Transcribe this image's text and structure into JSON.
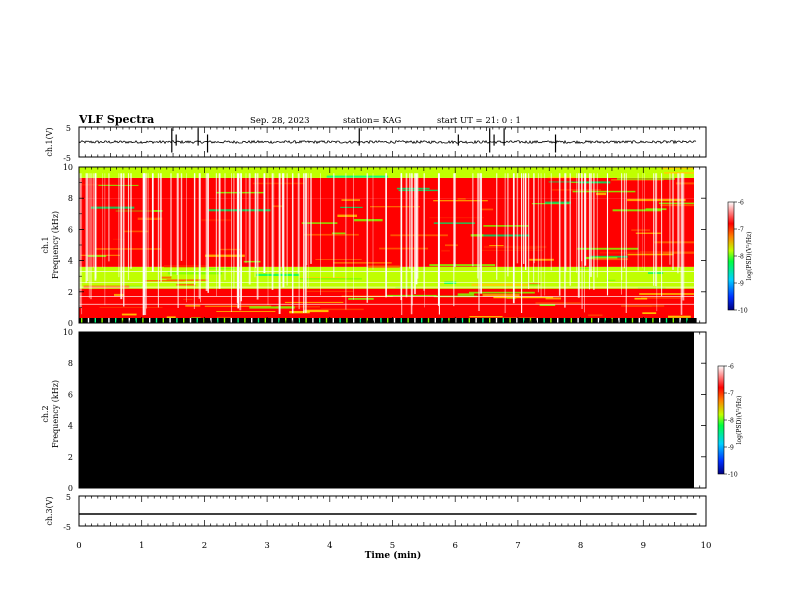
{
  "header": {
    "title": "VLF Spectra",
    "date": "Sep. 28, 2023",
    "station": "station= KAG",
    "start": "start  UT =   21: 0  : 1"
  },
  "chart_data": [
    {
      "type": "line",
      "panel": "ch1-waveform",
      "ylabel": "ch.1(V)",
      "ylim": [
        -5,
        5
      ],
      "yticks": [
        "5",
        "-5"
      ],
      "xlim": [
        0,
        10
      ],
      "baseline": 0,
      "spikes_x_min": [
        1.48,
        1.55,
        1.9,
        2.05,
        4.47,
        6.05,
        6.55,
        6.62,
        6.78,
        7.6
      ]
    },
    {
      "type": "heatmap",
      "panel": "ch1-spectrogram",
      "ylabel": "ch.1\nFrequency (kHz)",
      "ylim": [
        0,
        10
      ],
      "yticks": [
        "0",
        "2",
        "4",
        "6",
        "8",
        "10"
      ],
      "xlim": [
        0,
        9.85
      ],
      "colorbar": {
        "label": "log(PSD)(V²/Hz)",
        "ticks": [
          "-6",
          "-7",
          "-8",
          "-9",
          "-10"
        ],
        "range": [
          -10,
          -6
        ]
      },
      "bands": [
        {
          "from_khz": 0.0,
          "to_khz": 0.3,
          "level": -8.0
        },
        {
          "from_khz": 0.3,
          "to_khz": 2.2,
          "level": -6.8
        },
        {
          "from_khz": 2.2,
          "to_khz": 3.6,
          "level": -8.0
        },
        {
          "from_khz": 3.6,
          "to_khz": 8.0,
          "level": -6.4
        },
        {
          "from_khz": 8.0,
          "to_khz": 9.3,
          "level": -6.7
        },
        {
          "from_khz": 9.3,
          "to_khz": 10.0,
          "level": -7.8
        }
      ]
    },
    {
      "type": "heatmap",
      "panel": "ch2-spectrogram",
      "ylabel": "ch.2\nFrequency (kHz)",
      "ylim": [
        0,
        10
      ],
      "yticks": [
        "0",
        "2",
        "4",
        "6",
        "8",
        "10"
      ],
      "xlim": [
        0,
        9.85
      ],
      "fill": "no data (black)",
      "colorbar": {
        "label": "log(PSD)(V²/Hz)",
        "ticks": [
          "-6",
          "-7",
          "-8",
          "-9",
          "-10"
        ],
        "range": [
          -10,
          -6
        ]
      }
    },
    {
      "type": "line",
      "panel": "ch3-waveform",
      "ylabel": "ch.3(V)",
      "ylim": [
        -5,
        5
      ],
      "yticks": [
        "5",
        "-5"
      ],
      "xlim": [
        0,
        9.85
      ],
      "constant_value": -1.0
    }
  ],
  "xaxis": {
    "label": "Time  (min)",
    "ticks": [
      "0",
      "1",
      "2",
      "3",
      "4",
      "5",
      "6",
      "7",
      "8",
      "9",
      "10"
    ],
    "range": [
      0,
      10
    ]
  },
  "colors": {
    "frame": "#000000",
    "nodata": "#000000",
    "colormap": [
      "#000080",
      "#0040ff",
      "#00d0ff",
      "#00ff40",
      "#c0ff00",
      "#ff8000",
      "#ff0000",
      "#ffffff"
    ]
  }
}
